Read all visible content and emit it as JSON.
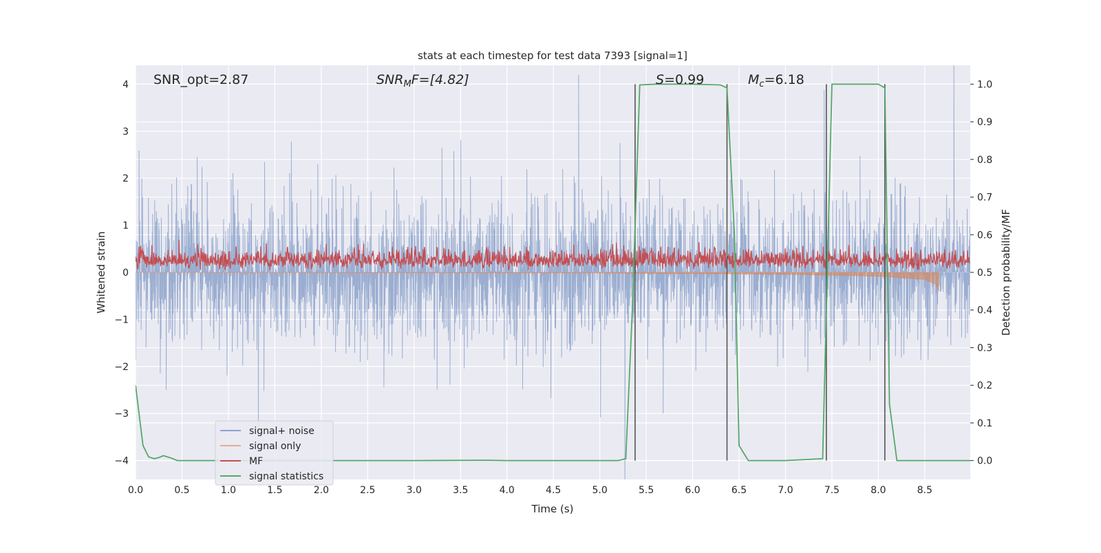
{
  "chart_data": {
    "type": "line",
    "title": "stats at each timestep for test data 7393 [signal=1]",
    "xlabel": "Time (s)",
    "ylabel": "Whitened strain",
    "ylabel_right": "Detection probability/MF",
    "xlim": [
      0,
      8.99
    ],
    "ylim": [
      -4.4,
      4.4
    ],
    "ylim_right": [
      -0.05,
      1.05
    ],
    "grid": true,
    "legend_placement": "lower-left",
    "xticks": [
      "0.0",
      "0.5",
      "1.0",
      "1.5",
      "2.0",
      "2.5",
      "3.0",
      "3.5",
      "4.0",
      "4.5",
      "5.0",
      "5.5",
      "6.0",
      "6.5",
      "7.0",
      "7.5",
      "8.0",
      "8.5"
    ],
    "yticks": [
      "−4",
      "−3",
      "−2",
      "−1",
      "0",
      "1",
      "2",
      "3",
      "4"
    ],
    "yticks_right": [
      "0.0",
      "0.1",
      "0.2",
      "0.3",
      "0.4",
      "0.5",
      "0.6",
      "0.7",
      "0.8",
      "0.9",
      "1.0"
    ],
    "annotations": {
      "snr_opt": "SNR_opt=2.87",
      "snr_mf_main": "SNR",
      "snr_mf_sub": "M",
      "snr_mf_rest": "F=[4.82]",
      "s_main": "S",
      "s_rest": "=0.99",
      "mc_main": "M",
      "mc_sub": "c",
      "mc_rest": "=6.18"
    },
    "vertical_lines_x": [
      5.38,
      6.37,
      7.44,
      8.07
    ],
    "series": [
      {
        "name": "signal+ noise",
        "color": "#4c72b0",
        "axis": "left",
        "description_values": {
          "std": 0.95,
          "span": [
            0,
            8.99
          ]
        }
      },
      {
        "name": "signal only",
        "color": "#dd8452",
        "axis": "left",
        "envelope": {
          "x": [
            0,
            5.0,
            7.0,
            8.0,
            8.5,
            8.62,
            8.65
          ],
          "y": [
            0,
            -0.01,
            -0.04,
            -0.08,
            -0.15,
            -0.25,
            -0.4
          ]
        }
      },
      {
        "name": "MF",
        "color": "#c44e52",
        "axis": "left",
        "description_values": {
          "mean": 0.25,
          "range": [
            0.05,
            0.8
          ]
        }
      },
      {
        "name": "signal statistics",
        "color": "#55a868",
        "axis": "right",
        "x": [
          0,
          0.08,
          0.14,
          0.2,
          0.25,
          0.3,
          0.38,
          0.45,
          1.0,
          2.0,
          3.0,
          3.8,
          4.0,
          5.0,
          5.2,
          5.28,
          5.35,
          5.43,
          5.6,
          6.0,
          6.3,
          6.37,
          6.45,
          6.5,
          6.6,
          7.0,
          7.4,
          7.45,
          7.5,
          8.0,
          8.07,
          8.12,
          8.2,
          8.99
        ],
        "y": [
          0.2,
          0.04,
          0.01,
          0.005,
          0.008,
          0.013,
          0.007,
          0.0,
          0.0,
          0.0,
          0.0,
          0.001,
          0.0,
          0.0,
          0.0,
          0.005,
          0.4,
          0.998,
          1.0,
          1.0,
          0.998,
          0.99,
          0.6,
          0.04,
          0.0,
          0.0,
          0.005,
          0.5,
          1.0,
          1.0,
          0.99,
          0.15,
          0.0,
          0.0
        ]
      }
    ]
  }
}
